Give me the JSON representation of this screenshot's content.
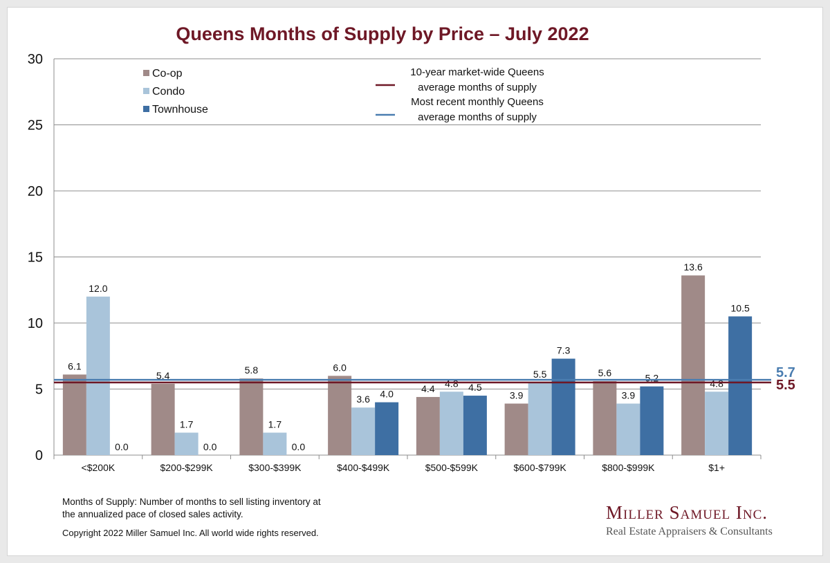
{
  "chart_data": {
    "type": "bar",
    "title": "Queens Months of Supply by Price – July 2022",
    "categories": [
      "<$200K",
      "$200-$299K",
      "$300-$399K",
      "$400-$499K",
      "$500-$599K",
      "$600-$799K",
      "$800-$999K",
      "$1+"
    ],
    "series": [
      {
        "name": "Co-op",
        "color": "#a08a88",
        "values": [
          6.1,
          5.4,
          5.8,
          6.0,
          4.4,
          3.9,
          5.6,
          13.6
        ]
      },
      {
        "name": "Condo",
        "color": "#a9c4da",
        "values": [
          12.0,
          1.7,
          1.7,
          3.6,
          4.8,
          5.5,
          3.9,
          4.8
        ]
      },
      {
        "name": "Townhouse",
        "color": "#3e6fa3",
        "values": [
          0.0,
          0.0,
          0.0,
          4.0,
          4.5,
          7.3,
          5.2,
          10.5
        ]
      }
    ],
    "reference_lines": [
      {
        "label": "10-year market-wide Queens average months of supply",
        "label_lines": [
          "10-year market-wide Queens",
          "average months of supply"
        ],
        "value": 5.5,
        "value_label": "5.5",
        "color": "#6e1826"
      },
      {
        "label": "Most recent monthly Queens average months of supply",
        "label_lines": [
          "Most recent monthly Queens",
          "average months of supply"
        ],
        "value": 5.7,
        "value_label": "5.7",
        "color": "#4a7db0"
      }
    ],
    "ylim": [
      0,
      30
    ],
    "yticks": [
      0,
      5,
      10,
      15,
      20,
      25,
      30
    ],
    "grid": true,
    "legend_position": "top-left"
  },
  "footnote_lines": [
    "Months of Supply: Number of months to sell listing inventory at",
    "the annualized pace of closed sales activity."
  ],
  "copyright": "Copyright 2022 Miller Samuel Inc.  All world wide rights reserved.",
  "logo": {
    "name": "Miller Samuel Inc.",
    "tagline": "Real Estate Appraisers & Consultants"
  }
}
